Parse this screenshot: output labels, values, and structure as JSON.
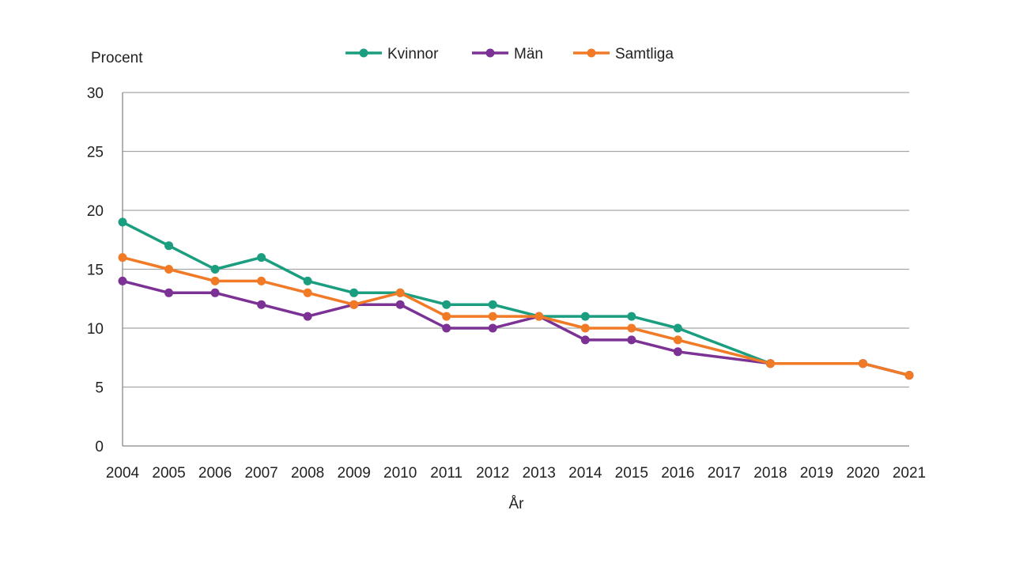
{
  "chart_data": {
    "type": "line",
    "title": "",
    "xlabel": "År",
    "ylabel": "Procent",
    "ylim": [
      0,
      30
    ],
    "yticks": [
      0,
      5,
      10,
      15,
      20,
      25,
      30
    ],
    "grid": true,
    "legend_position": "top",
    "x": [
      2004,
      2005,
      2006,
      2007,
      2008,
      2009,
      2010,
      2011,
      2012,
      2013,
      2014,
      2015,
      2016,
      2017,
      2018,
      2019,
      2020,
      2021
    ],
    "series": [
      {
        "name": "Kvinnor",
        "color": "#1a9e7f",
        "values": [
          19,
          17,
          15,
          16,
          14,
          13,
          13,
          12,
          12,
          11,
          11,
          11,
          10,
          null,
          7,
          null,
          7,
          6
        ]
      },
      {
        "name": "Män",
        "color": "#7b3294",
        "values": [
          14,
          13,
          13,
          12,
          11,
          12,
          12,
          10,
          10,
          11,
          9,
          9,
          8,
          null,
          7,
          null,
          7,
          6
        ]
      },
      {
        "name": "Samtliga",
        "color": "#f07a26",
        "values": [
          16,
          15,
          14,
          14,
          13,
          12,
          13,
          11,
          11,
          11,
          10,
          10,
          9,
          null,
          7,
          null,
          7,
          6
        ]
      }
    ]
  }
}
